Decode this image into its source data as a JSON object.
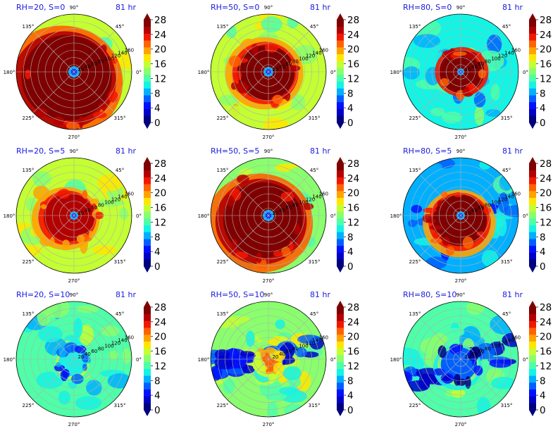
{
  "chart_data": {
    "type": "polar-filled-contour-grid",
    "time_label": "81 hr",
    "azimuth_labels": [
      "90°",
      "45°",
      "0°",
      "315°",
      "270°",
      "225°",
      "180°",
      "135°"
    ],
    "radial_labels": [
      "20",
      "40",
      "60",
      "80",
      "100",
      "120",
      "140",
      "160"
    ],
    "radial_max": 160,
    "colorbar": {
      "ticks": [
        "0",
        "4",
        "8",
        "12",
        "16",
        "20",
        "24",
        "28"
      ],
      "levels": [
        0,
        2,
        4,
        6,
        8,
        10,
        12,
        14,
        16,
        18,
        20,
        22,
        24,
        26,
        28
      ],
      "colors": [
        "#00007f",
        "#0000c8",
        "#0010ff",
        "#0060ff",
        "#00b0ff",
        "#13f4e4",
        "#4effa8",
        "#8aff6d",
        "#c4ff33",
        "#ffe600",
        "#ffa300",
        "#ff6200",
        "#f21800",
        "#b30000",
        "#7f0000"
      ],
      "extend": "both"
    },
    "panels": [
      {
        "title": "RH=20, S=0",
        "time": "81 hr",
        "core_level": 14,
        "core_radius": 125,
        "ring_level": 11,
        "outer_level": 8,
        "asym": 0.35,
        "angle": 220,
        "eye": 8,
        "blueband": 0
      },
      {
        "title": "RH=50, S=0",
        "time": "81 hr",
        "core_level": 14,
        "core_radius": 80,
        "ring_level": 10,
        "outer_level": 8,
        "asym": 0.15,
        "angle": 200,
        "eye": 7,
        "blueband": 0
      },
      {
        "title": "RH=80, S=0",
        "time": "81 hr",
        "core_level": 14,
        "core_radius": 55,
        "ring_level": 12,
        "outer_level": 5,
        "asym": 0.05,
        "angle": 0,
        "eye": 5,
        "blueband": 0
      },
      {
        "title": "RH=20, S=5",
        "time": "81 hr",
        "core_level": 13,
        "core_radius": 70,
        "ring_level": 10,
        "outer_level": 8,
        "asym": 0.35,
        "angle": 200,
        "eye": 6,
        "blueband": 0
      },
      {
        "title": "RH=50, S=5",
        "time": "81 hr",
        "core_level": 14,
        "core_radius": 110,
        "ring_level": 11,
        "outer_level": 7,
        "asym": 0.3,
        "angle": 220,
        "eye": 8,
        "blueband": 0
      },
      {
        "title": "RH=80, S=5",
        "time": "81 hr",
        "core_level": 14,
        "core_radius": 75,
        "ring_level": 10,
        "outer_level": 4,
        "asym": 0.3,
        "angle": 260,
        "eye": 6,
        "blueband": 0
      },
      {
        "title": "RH=20, S=10",
        "time": "81 hr",
        "core_level": 5,
        "core_radius": 40,
        "ring_level": 6,
        "outer_level": 6,
        "asym": 0.4,
        "angle": 250,
        "eye": 0,
        "blueband": 0
      },
      {
        "title": "RH=50, S=10",
        "time": "81 hr",
        "core_level": 11,
        "core_radius": 30,
        "ring_level": 8,
        "outer_level": 7,
        "asym": 0.4,
        "angle": 260,
        "eye": 0,
        "blueband": 1
      },
      {
        "title": "RH=80, S=10",
        "time": "81 hr",
        "core_level": 3,
        "core_radius": 50,
        "ring_level": 5,
        "outer_level": 6,
        "asym": 0.5,
        "angle": 250,
        "eye": 0,
        "blueband": 2
      }
    ]
  }
}
